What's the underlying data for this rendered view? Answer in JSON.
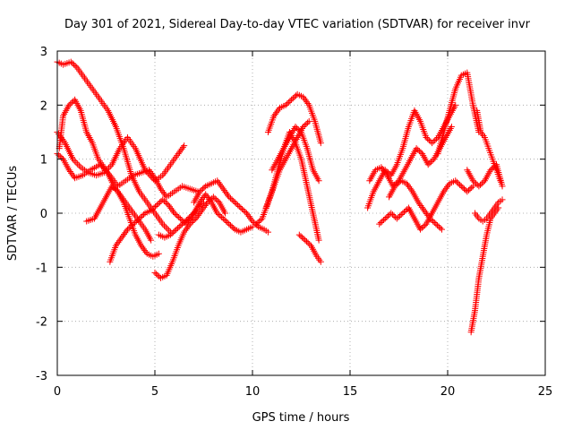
{
  "chart_data": {
    "type": "scatter",
    "title": "Day 301 of 2021, Sidereal Day-to-day VTEC variation (SDTVAR) for receiver invr",
    "xlabel": "GPS time / hours",
    "ylabel": "SDTVAR / TECUs",
    "xlim": [
      0,
      25
    ],
    "ylim": [
      -3,
      3
    ],
    "xticks": [
      "0",
      "5",
      "10",
      "15",
      "20",
      "25"
    ],
    "yticks": [
      "-3",
      "-2",
      "-1",
      "0",
      "1",
      "2",
      "3"
    ],
    "grid": true,
    "marker": "+",
    "color": "#ff0000",
    "series": [
      {
        "name": "s1",
        "x": [
          0.0,
          0.3,
          0.7,
          1.0,
          1.4,
          1.8,
          2.2,
          2.6,
          3.0,
          3.4,
          3.8,
          4.2,
          4.6,
          5.0,
          5.4,
          5.8
        ],
        "y": [
          2.8,
          2.75,
          2.8,
          2.7,
          2.5,
          2.3,
          2.1,
          1.9,
          1.6,
          1.2,
          0.7,
          0.4,
          0.2,
          0.0,
          -0.2,
          -0.35
        ]
      },
      {
        "name": "s2",
        "x": [
          0.1,
          0.3,
          0.6,
          0.9,
          1.2,
          1.5,
          1.8,
          2.1,
          2.5,
          2.9,
          3.3,
          3.7,
          4.1,
          4.5,
          4.8
        ],
        "y": [
          1.2,
          1.8,
          2.0,
          2.1,
          1.9,
          1.5,
          1.3,
          1.0,
          0.8,
          0.5,
          0.3,
          0.1,
          -0.1,
          -0.3,
          -0.5
        ]
      },
      {
        "name": "s3",
        "x": [
          0.0,
          0.4,
          0.8,
          1.2,
          1.6,
          2.0,
          2.4,
          2.8,
          3.2,
          3.6,
          4.0,
          4.5,
          5.0,
          5.4,
          5.8,
          6.2,
          6.5
        ],
        "y": [
          1.5,
          1.3,
          1.0,
          0.85,
          0.75,
          0.7,
          0.75,
          0.9,
          1.2,
          1.4,
          1.2,
          0.8,
          0.6,
          0.7,
          0.9,
          1.1,
          1.25
        ]
      },
      {
        "name": "s4",
        "x": [
          0.0,
          0.3,
          0.6,
          0.9,
          1.3,
          1.7,
          2.2,
          2.7,
          3.1,
          3.5,
          3.9,
          4.3,
          4.7,
          5.0,
          5.3,
          5.6,
          6.0,
          6.4,
          6.8,
          7.2
        ],
        "y": [
          1.1,
          1.0,
          0.8,
          0.65,
          0.7,
          0.8,
          0.9,
          0.7,
          0.5,
          0.6,
          0.7,
          0.75,
          0.8,
          0.65,
          0.45,
          0.3,
          0.4,
          0.5,
          0.45,
          0.4
        ]
      },
      {
        "name": "s5",
        "x": [
          1.5,
          1.9,
          2.2,
          2.5,
          2.8,
          3.1,
          3.4,
          3.7,
          4.0,
          4.3,
          4.6,
          4.9,
          5.2
        ],
        "y": [
          -0.15,
          -0.1,
          0.1,
          0.3,
          0.5,
          0.4,
          0.2,
          -0.1,
          -0.4,
          -0.6,
          -0.75,
          -0.8,
          -0.75
        ]
      },
      {
        "name": "s6",
        "x": [
          2.7,
          3.0,
          3.3,
          3.6,
          3.9,
          4.2,
          4.5,
          4.8,
          5.1,
          5.4,
          5.7,
          6.0,
          6.3,
          6.6,
          6.9,
          7.2,
          7.5
        ],
        "y": [
          -0.9,
          -0.6,
          -0.45,
          -0.3,
          -0.2,
          -0.1,
          0.0,
          0.05,
          0.15,
          0.25,
          0.15,
          0.0,
          -0.1,
          -0.2,
          -0.05,
          0.1,
          0.2
        ]
      },
      {
        "name": "s7",
        "x": [
          5.0,
          5.3,
          5.6,
          5.9,
          6.2,
          6.5,
          6.8,
          7.1,
          7.4,
          7.7,
          8.0,
          8.3,
          8.6
        ],
        "y": [
          -1.1,
          -1.2,
          -1.15,
          -0.9,
          -0.6,
          -0.35,
          -0.2,
          -0.1,
          0.05,
          0.2,
          0.3,
          0.2,
          0.0
        ]
      },
      {
        "name": "s8",
        "x": [
          5.2,
          5.5,
          5.8,
          6.1,
          6.4,
          6.7,
          7.0,
          7.3,
          7.6,
          7.9,
          8.2,
          8.5,
          8.8,
          9.1,
          9.4,
          9.7,
          10.0
        ],
        "y": [
          -0.4,
          -0.45,
          -0.4,
          -0.3,
          -0.2,
          -0.1,
          0.0,
          0.2,
          0.35,
          0.2,
          0.0,
          -0.1,
          -0.2,
          -0.3,
          -0.35,
          -0.3,
          -0.25
        ]
      },
      {
        "name": "s9",
        "x": [
          7.0,
          7.3,
          7.6,
          7.9,
          8.2,
          8.5,
          8.8,
          9.1,
          9.4,
          9.7,
          10.0,
          10.3,
          10.6,
          10.8
        ],
        "y": [
          0.2,
          0.4,
          0.5,
          0.55,
          0.6,
          0.45,
          0.3,
          0.2,
          0.1,
          0.0,
          -0.15,
          -0.25,
          -0.3,
          -0.35
        ]
      },
      {
        "name": "s10",
        "x": [
          10.2,
          10.5,
          10.8,
          11.1,
          11.4,
          11.7,
          12.0,
          12.3,
          12.6,
          12.9
        ],
        "y": [
          -0.2,
          -0.1,
          0.2,
          0.5,
          0.8,
          1.0,
          1.2,
          1.4,
          1.6,
          1.7
        ]
      },
      {
        "name": "s11",
        "x": [
          10.7,
          11.0,
          11.3,
          11.6,
          11.9,
          12.2,
          12.5,
          12.8,
          13.1,
          13.4
        ],
        "y": [
          0.1,
          0.4,
          0.8,
          1.2,
          1.5,
          1.3,
          1.0,
          0.5,
          0.0,
          -0.5
        ]
      },
      {
        "name": "s12",
        "x": [
          10.8,
          11.1,
          11.4,
          11.7,
          12.0,
          12.3,
          12.6,
          12.9,
          13.2,
          13.5
        ],
        "y": [
          1.5,
          1.8,
          1.95,
          2.0,
          2.1,
          2.2,
          2.15,
          2.0,
          1.7,
          1.3
        ]
      },
      {
        "name": "s13",
        "x": [
          11.0,
          11.3,
          11.6,
          11.9,
          12.2,
          12.5,
          12.8,
          13.1,
          13.4
        ],
        "y": [
          0.8,
          1.0,
          1.2,
          1.4,
          1.6,
          1.5,
          1.2,
          0.8,
          0.6
        ]
      },
      {
        "name": "s14",
        "x": [
          12.4,
          12.7,
          13.0,
          13.3,
          13.5
        ],
        "y": [
          -0.4,
          -0.5,
          -0.6,
          -0.8,
          -0.9
        ]
      },
      {
        "name": "s15",
        "x": [
          15.9,
          16.2,
          16.5,
          16.8,
          17.1,
          17.4,
          17.7,
          18.0,
          18.3,
          18.6,
          18.9,
          19.2,
          19.5,
          19.8,
          20.1,
          20.4
        ],
        "y": [
          0.1,
          0.4,
          0.6,
          0.8,
          0.7,
          0.9,
          1.2,
          1.6,
          1.9,
          1.7,
          1.4,
          1.3,
          1.4,
          1.6,
          1.8,
          2.0
        ]
      },
      {
        "name": "s16",
        "x": [
          16.0,
          16.3,
          16.6,
          16.9,
          17.2,
          17.5,
          17.8,
          18.1,
          18.4,
          18.7,
          19.0,
          19.3,
          19.6,
          19.9,
          20.2
        ],
        "y": [
          0.6,
          0.8,
          0.85,
          0.7,
          0.5,
          0.6,
          0.8,
          1.0,
          1.2,
          1.1,
          0.9,
          1.0,
          1.2,
          1.4,
          1.6
        ]
      },
      {
        "name": "s17",
        "x": [
          16.5,
          16.8,
          17.1,
          17.4,
          17.7,
          18.0,
          18.3,
          18.6,
          18.9,
          19.2,
          19.5,
          19.8,
          20.1,
          20.4,
          20.7,
          21.0,
          21.3
        ],
        "y": [
          -0.2,
          -0.1,
          0.0,
          -0.1,
          0.0,
          0.1,
          -0.1,
          -0.3,
          -0.2,
          0.0,
          0.2,
          0.4,
          0.55,
          0.6,
          0.5,
          0.4,
          0.5
        ]
      },
      {
        "name": "s18",
        "x": [
          17.0,
          17.3,
          17.6,
          17.9,
          18.2,
          18.5,
          18.8,
          19.1,
          19.4,
          19.7
        ],
        "y": [
          0.3,
          0.5,
          0.6,
          0.55,
          0.4,
          0.2,
          0.05,
          -0.1,
          -0.2,
          -0.3
        ]
      },
      {
        "name": "s19",
        "x": [
          19.5,
          19.8,
          20.1,
          20.4,
          20.7,
          21.0,
          21.3,
          21.6
        ],
        "y": [
          1.1,
          1.5,
          1.9,
          2.3,
          2.55,
          2.6,
          2.0,
          1.5
        ]
      },
      {
        "name": "s20",
        "x": [
          21.0,
          21.3,
          21.6,
          21.9,
          22.2,
          22.5,
          22.8
        ],
        "y": [
          0.8,
          0.6,
          0.5,
          0.6,
          0.8,
          0.9,
          0.5
        ]
      },
      {
        "name": "s21",
        "x": [
          21.2,
          21.4,
          21.6,
          21.8,
          22.0,
          22.2,
          22.4,
          22.6
        ],
        "y": [
          -2.2,
          -1.8,
          -1.2,
          -0.8,
          -0.4,
          -0.1,
          0.0,
          0.1
        ]
      },
      {
        "name": "s22",
        "x": [
          21.5,
          21.7,
          21.9,
          22.1,
          22.3,
          22.5,
          22.7
        ],
        "y": [
          1.9,
          1.5,
          1.4,
          1.2,
          1.0,
          0.8,
          0.6
        ]
      },
      {
        "name": "s23",
        "x": [
          21.4,
          21.6,
          21.8,
          22.0,
          22.2,
          22.4,
          22.6,
          22.8
        ],
        "y": [
          0.0,
          -0.1,
          -0.15,
          -0.1,
          0.0,
          0.1,
          0.2,
          0.25
        ]
      }
    ]
  }
}
